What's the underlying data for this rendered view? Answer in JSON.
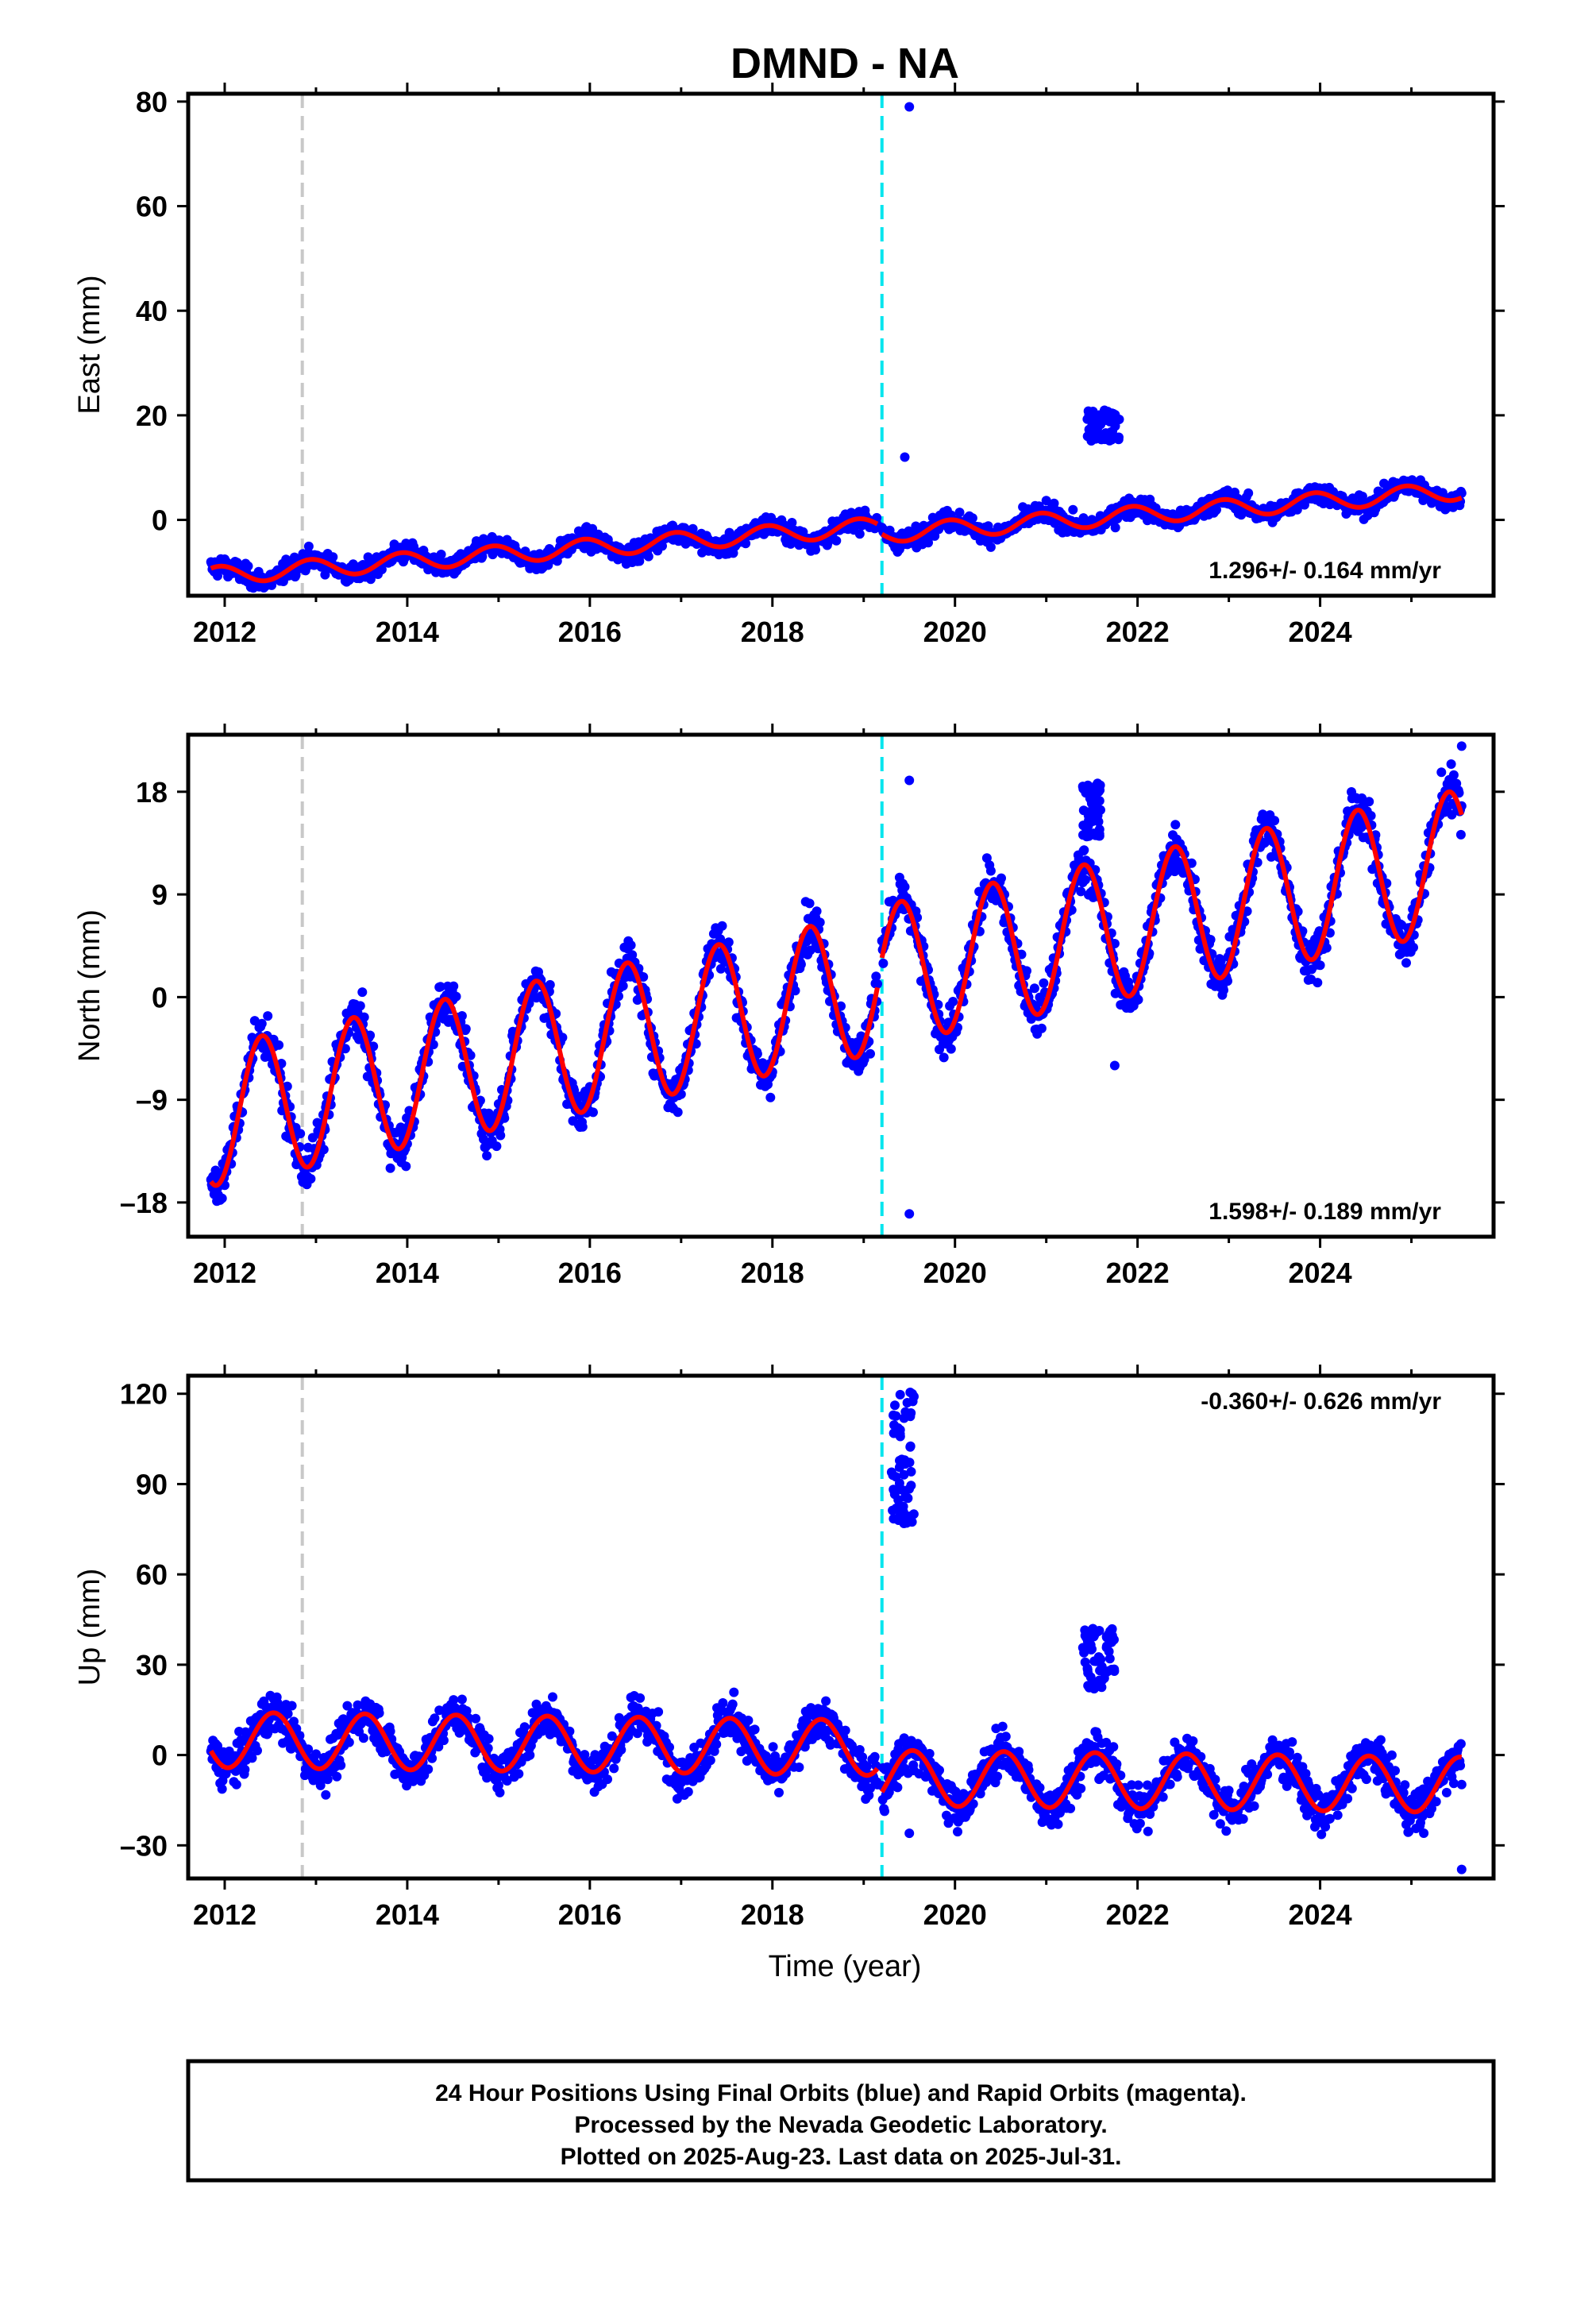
{
  "title": "DMND - NA",
  "xlabel": "Time (year)",
  "colors": {
    "points": "#0000ff",
    "fit": "#ff0000",
    "event_gray": "#c8c8c8",
    "event_cyan": "#00e5ee"
  },
  "footer": {
    "line1": "24 Hour Positions Using Final Orbits (blue) and Rapid Orbits (magenta).",
    "line2": "Processed by the Nevada Geodetic Laboratory.",
    "line3": "Plotted on 2025-Aug-23. Last data on 2025-Jul-31."
  },
  "chart_data": [
    {
      "type": "scatter",
      "name": "east",
      "ylabel": "East (mm)",
      "rate_text": "1.296+/- 0.164 mm/yr",
      "rate_position": "bottom-right",
      "xlim": [
        2011.6,
        2025.9
      ],
      "ylim": [
        -14.5,
        81.5
      ],
      "yticks": [
        0,
        20,
        40,
        60,
        80
      ],
      "xticks": [
        2012,
        2014,
        2016,
        2018,
        2020,
        2022,
        2024
      ],
      "event_lines": [
        {
          "x": 2012.85,
          "color": "gray"
        },
        {
          "x": 2019.2,
          "color": "cyan"
        }
      ],
      "fit": {
        "offset": -10.5,
        "rate": 1.296,
        "amp_cos": 1.6,
        "amp_sin": -0.6,
        "t0": 2012.0,
        "segments": [
          {
            "x_start": 2011.85,
            "x_end": 2019.15,
            "offset_adj": 0
          },
          {
            "x_start": 2019.2,
            "x_end": 2025.55,
            "offset_adj": -1.5
          }
        ]
      },
      "anomalies": [
        {
          "x": [
            2021.45,
            2021.8
          ],
          "y": [
            15,
            21
          ]
        },
        {
          "x": 2019.5,
          "y": 79
        },
        {
          "x": 2019.45,
          "y": 12
        }
      ]
    },
    {
      "type": "scatter",
      "name": "north",
      "ylabel": "North (mm)",
      "rate_text": "1.598+/- 0.189 mm/yr",
      "rate_position": "bottom-right",
      "xlim": [
        2011.6,
        2025.9
      ],
      "ylim": [
        -21,
        23
      ],
      "yticks": [
        -18,
        -9,
        0,
        9,
        18
      ],
      "xticks": [
        2012,
        2014,
        2016,
        2018,
        2020,
        2022,
        2024
      ],
      "event_lines": [
        {
          "x": 2012.85,
          "color": "gray"
        },
        {
          "x": 2019.2,
          "color": "cyan"
        }
      ],
      "fit": {
        "offset": -10.2,
        "rate": 1.598,
        "amp_cos": -5.2,
        "amp_sin": 3.3,
        "t0": 2012.0,
        "segments": [
          {
            "x_start": 2011.85,
            "x_end": 2019.15,
            "offset_adj": 0
          },
          {
            "x_start": 2019.2,
            "x_end": 2025.55,
            "offset_adj": 0.6
          }
        ]
      },
      "anomalies": [
        {
          "x": [
            2021.4,
            2021.6
          ],
          "y": [
            14,
            19
          ]
        },
        {
          "x": 2019.5,
          "y": 19
        },
        {
          "x": 2019.5,
          "y": -19
        },
        {
          "x": 2021.75,
          "y": -6
        },
        {
          "x": 2025.55,
          "y": 22
        }
      ]
    },
    {
      "type": "scatter",
      "name": "up",
      "ylabel": "Up (mm)",
      "rate_text": "-0.360+/- 0.626 mm/yr",
      "rate_position": "top-right",
      "xlim": [
        2011.6,
        2025.9
      ],
      "ylim": [
        -41,
        126
      ],
      "yticks": [
        -30,
        0,
        30,
        60,
        90,
        120
      ],
      "xticks": [
        2012,
        2014,
        2016,
        2018,
        2020,
        2022,
        2024
      ],
      "event_lines": [
        {
          "x": 2012.85,
          "color": "gray"
        },
        {
          "x": 2019.2,
          "color": "cyan"
        }
      ],
      "fit": {
        "offset": 5.0,
        "rate": -0.36,
        "amp_cos": -9.0,
        "amp_sin": -2.0,
        "t0": 2012.0,
        "segments": [
          {
            "x_start": 2011.85,
            "x_end": 2019.15,
            "offset_adj": 0
          },
          {
            "x_start": 2019.2,
            "x_end": 2025.55,
            "offset_adj": -10
          }
        ]
      },
      "anomalies": [
        {
          "x": [
            2019.3,
            2019.55
          ],
          "y": [
            75,
            122
          ]
        },
        {
          "x": [
            2021.4,
            2021.75
          ],
          "y": [
            22,
            42
          ]
        },
        {
          "x": 2019.5,
          "y": -26
        },
        {
          "x": 2025.55,
          "y": -38
        }
      ]
    }
  ]
}
